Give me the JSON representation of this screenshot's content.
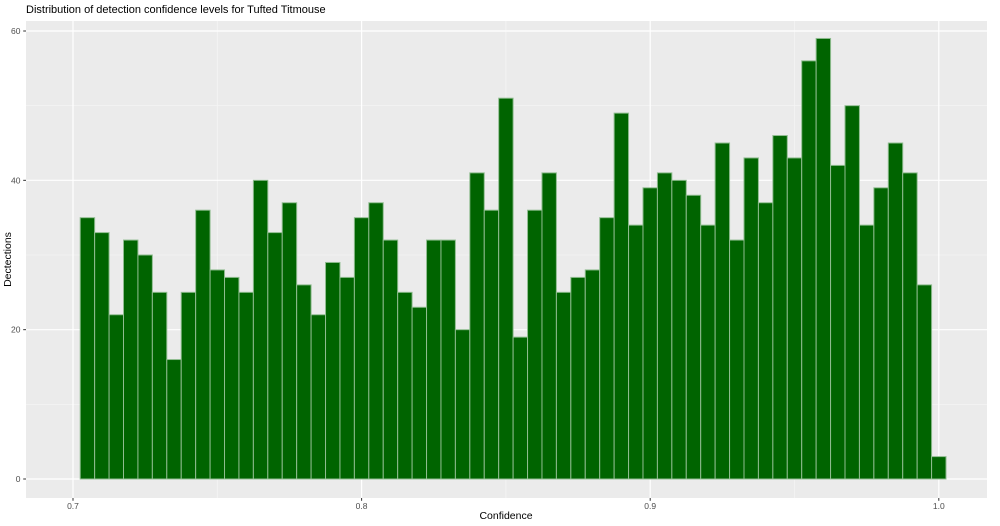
{
  "page": {
    "background": "#ffffff"
  },
  "chart_data": {
    "type": "bar",
    "subtype": "histogram",
    "title": "Distribution of detection confidence levels for Tufted Titmouse",
    "xlabel": "Confidence",
    "ylabel": "Dectections",
    "bin_width": 0.005,
    "bin_centers": [
      0.705,
      0.71,
      0.715,
      0.72,
      0.725,
      0.73,
      0.735,
      0.74,
      0.745,
      0.75,
      0.755,
      0.76,
      0.765,
      0.77,
      0.775,
      0.78,
      0.785,
      0.79,
      0.795,
      0.8,
      0.805,
      0.81,
      0.815,
      0.82,
      0.825,
      0.83,
      0.835,
      0.84,
      0.845,
      0.85,
      0.855,
      0.86,
      0.865,
      0.87,
      0.875,
      0.88,
      0.885,
      0.89,
      0.895,
      0.9,
      0.905,
      0.91,
      0.915,
      0.92,
      0.925,
      0.93,
      0.935,
      0.94,
      0.945,
      0.95,
      0.955,
      0.96,
      0.965,
      0.97,
      0.975,
      0.98,
      0.985,
      0.99,
      0.995,
      1.0
    ],
    "values": [
      35,
      33,
      22,
      32,
      30,
      25,
      16,
      25,
      36,
      28,
      27,
      25,
      40,
      33,
      37,
      26,
      22,
      29,
      27,
      35,
      37,
      32,
      25,
      23,
      32,
      32,
      20,
      41,
      36,
      51,
      19,
      36,
      41,
      25,
      27,
      28,
      35,
      49,
      34,
      39,
      41,
      40,
      38,
      34,
      45,
      32,
      43,
      37,
      46,
      43,
      56,
      59,
      42,
      50,
      34,
      39,
      45,
      41,
      26,
      3
    ],
    "x_ticks": [
      0.7,
      0.8,
      0.9,
      1.0
    ],
    "x_tick_labels": [
      "0.7",
      "0.8",
      "0.9",
      "1.0"
    ],
    "x_minor_ticks": [
      0.75,
      0.85,
      0.95
    ],
    "y_ticks": [
      0,
      20,
      40,
      60
    ],
    "y_tick_labels": [
      "0",
      "20",
      "40",
      "60"
    ],
    "y_minor_ticks": [
      10,
      30,
      50
    ],
    "xlim": [
      0.6837,
      1.0167
    ],
    "ylim": [
      -2.55,
      61.35
    ],
    "grid": true,
    "legend": false,
    "style": {
      "bar_fill": "#006400",
      "bar_stroke": "#8fbc8f",
      "panel_bg": "#ebebeb",
      "grid_major_color": "#ffffff",
      "grid_minor_color": "#f5f5f5",
      "tick_mark_color": "#333333",
      "tick_label_color": "#4d4d4d",
      "title_color": "#000000"
    }
  }
}
